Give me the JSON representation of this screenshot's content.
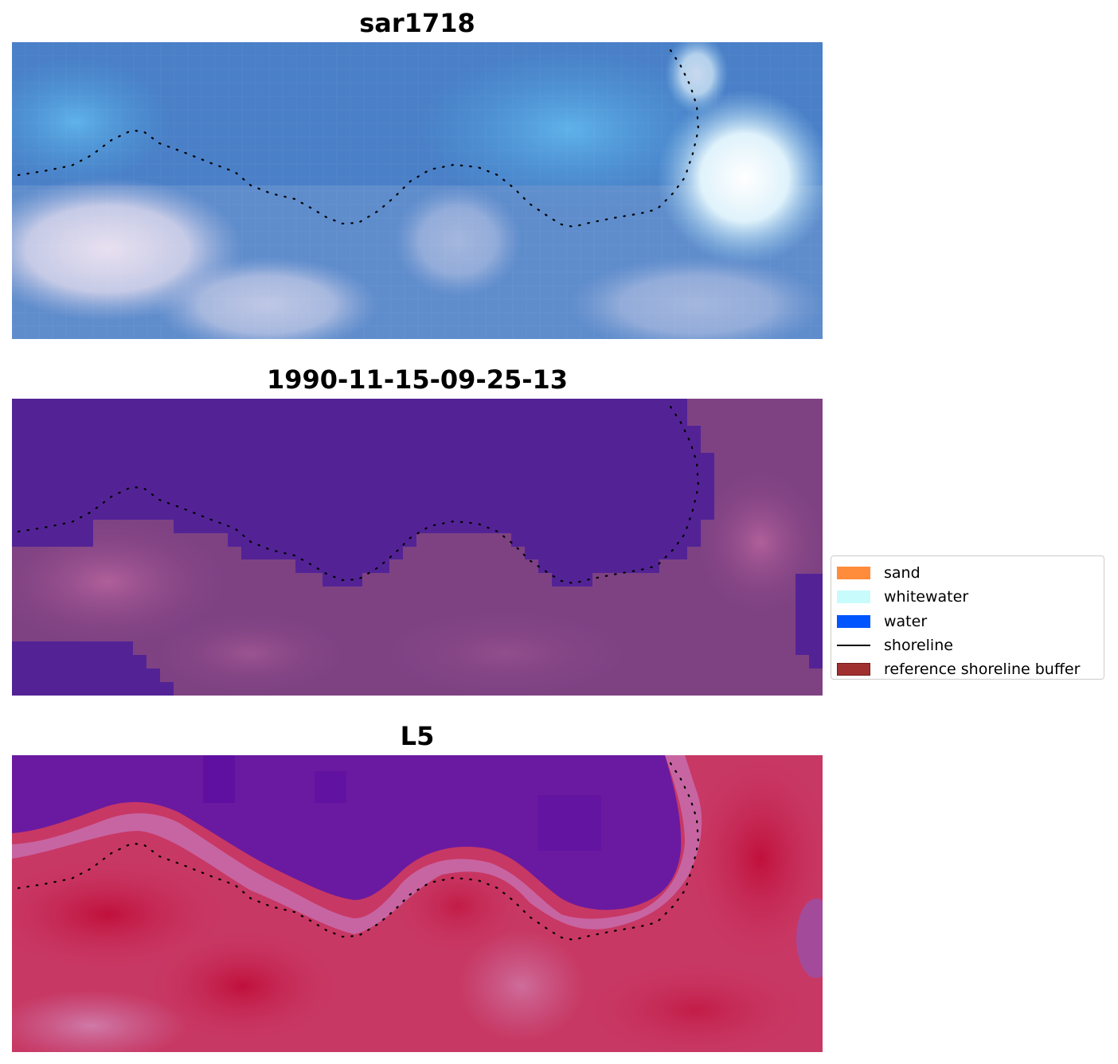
{
  "panels": [
    {
      "title": "sar1718",
      "style": "rgb"
    },
    {
      "title": "1990-11-15-09-25-13",
      "style": "classified"
    },
    {
      "title": "L5",
      "style": "index"
    }
  ],
  "legend": {
    "items": [
      {
        "label": "sand",
        "color": "#ff8c3a",
        "kind": "patch"
      },
      {
        "label": "whitewater",
        "color": "#c8fbfb",
        "kind": "patch"
      },
      {
        "label": "water",
        "color": "#0055ff",
        "kind": "patch"
      },
      {
        "label": "shoreline",
        "color": "#000000",
        "kind": "line"
      },
      {
        "label": "reference shoreline buffer",
        "color": "#a03030",
        "kind": "patch"
      }
    ]
  }
}
